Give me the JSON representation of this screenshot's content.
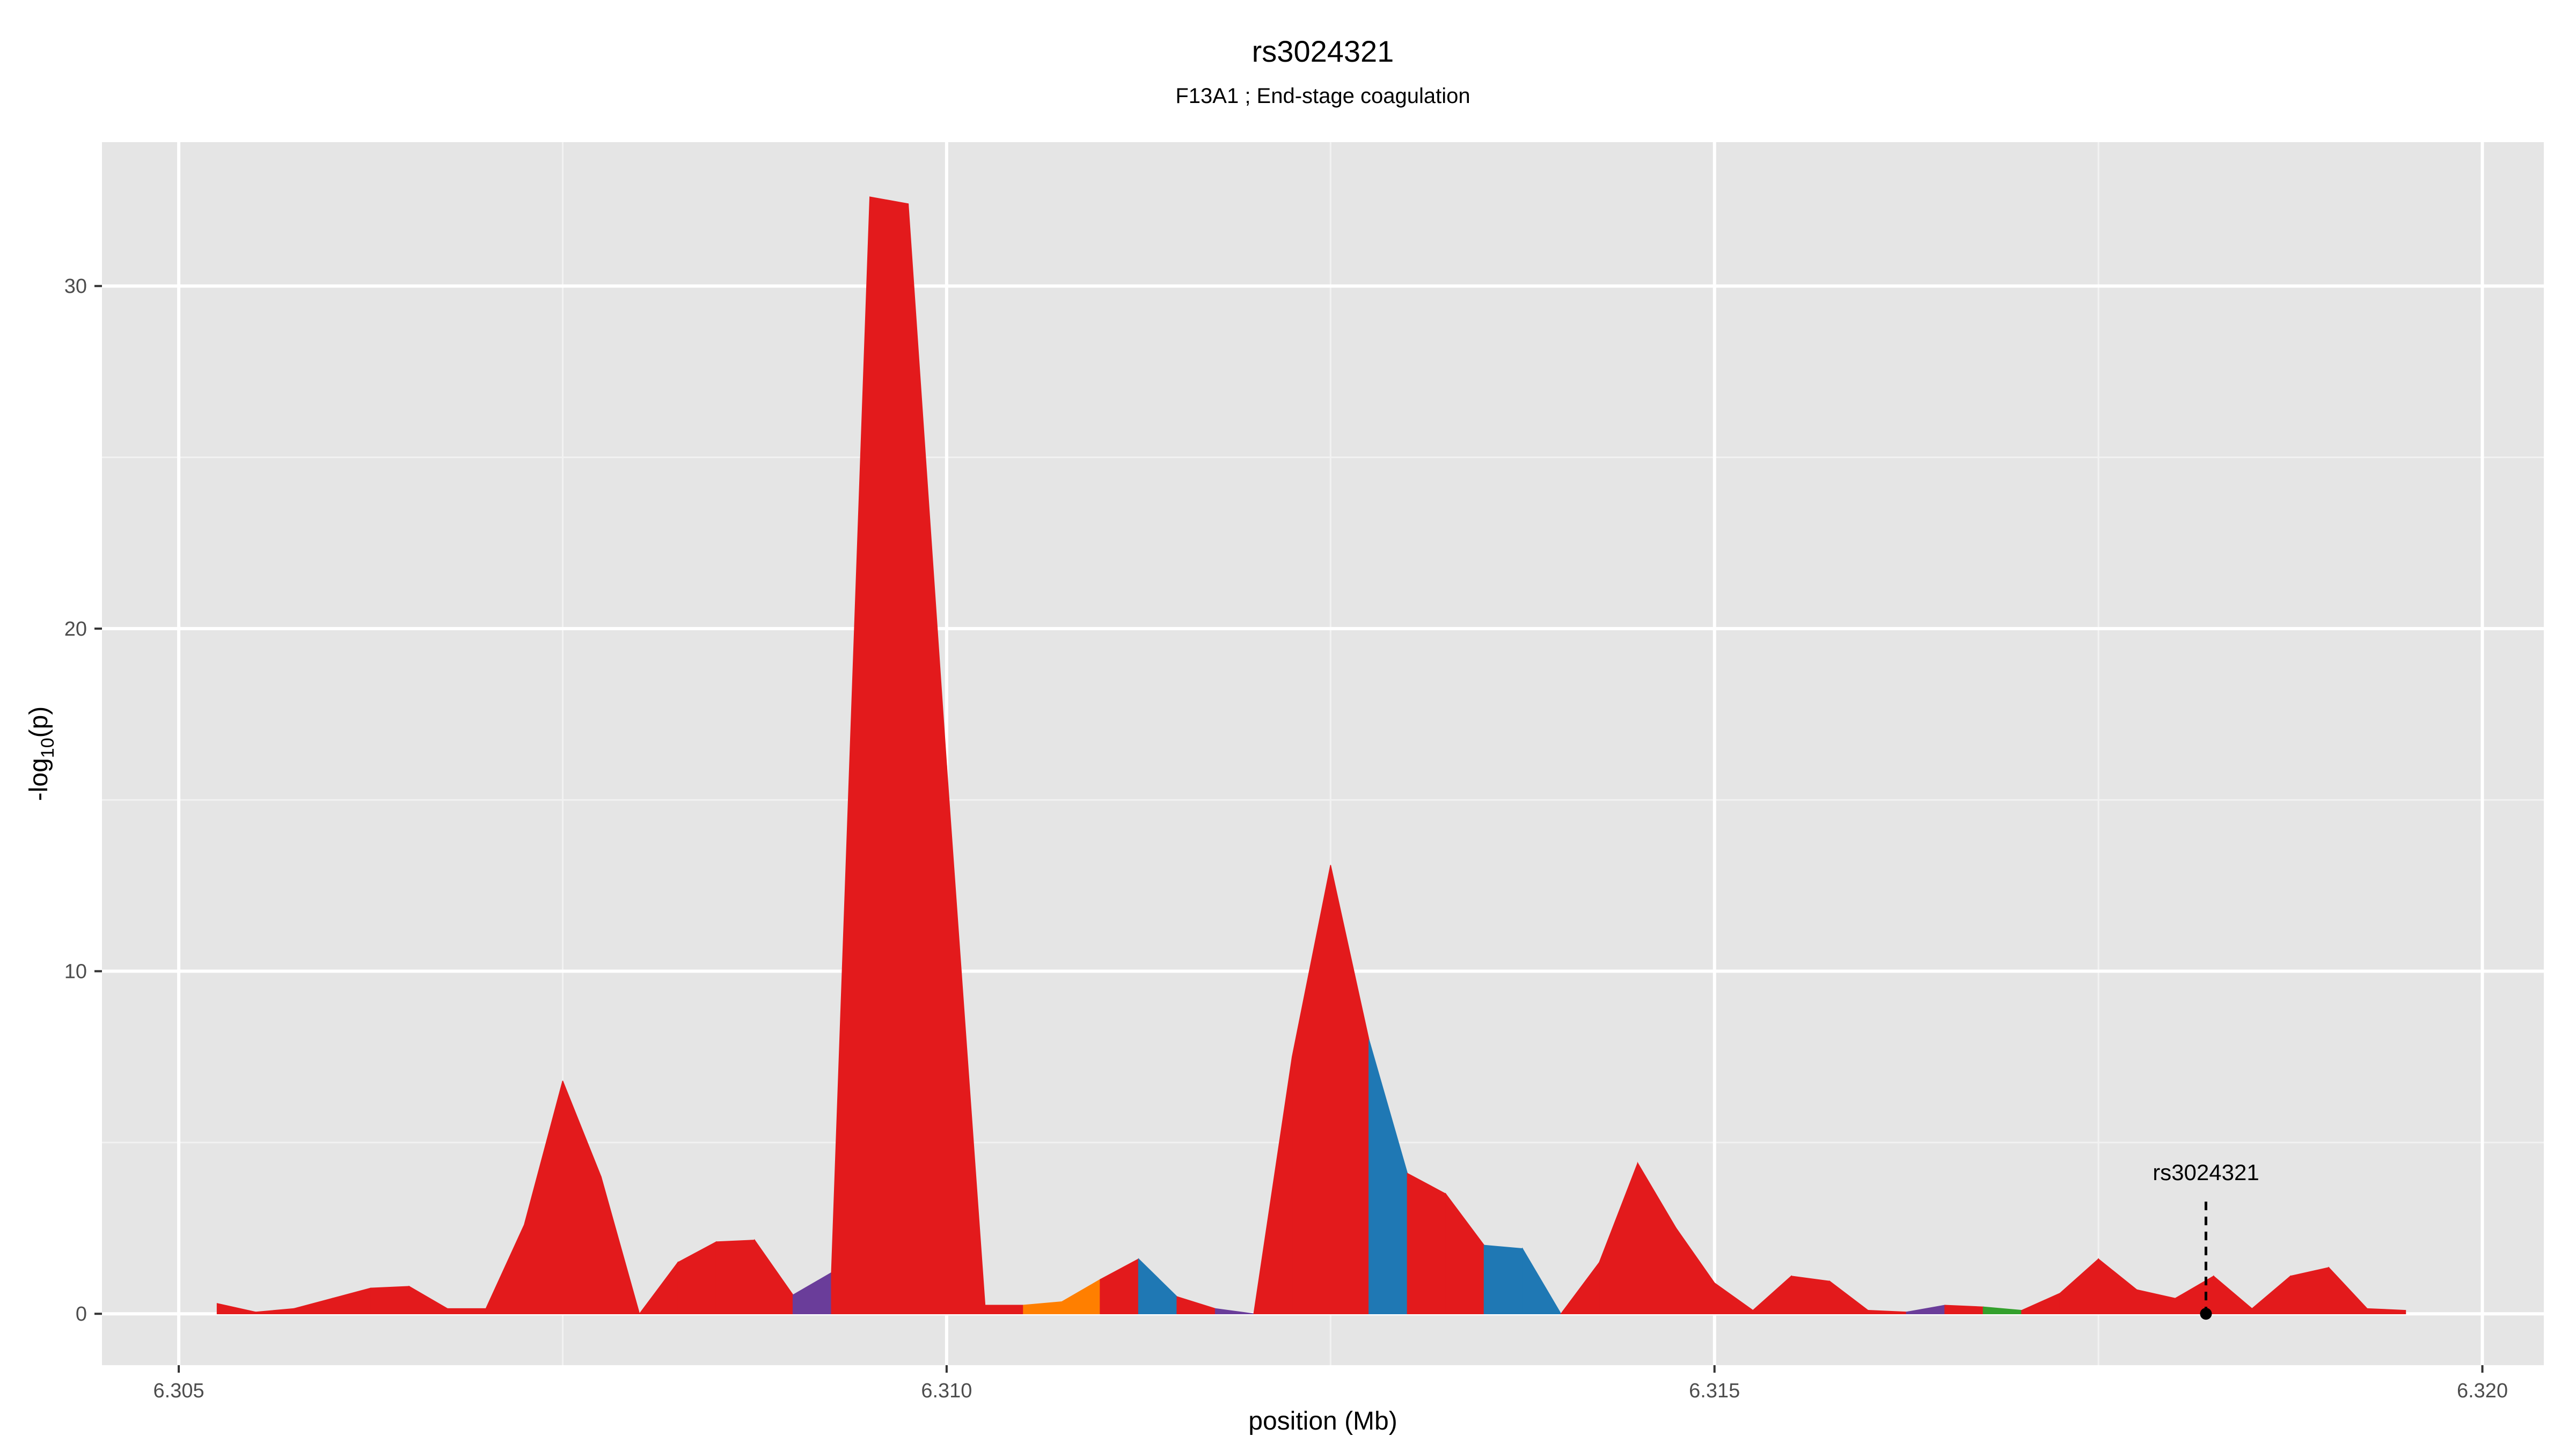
{
  "chart_data": {
    "type": "area",
    "title": "rs3024321",
    "subtitle": "F13A1 ; End-stage coagulation",
    "xlabel": "position (Mb)",
    "ylabel_main": "-log",
    "ylabel_sub": "10",
    "ylabel_tail": "(p)",
    "xlim": [
      6.3045,
      6.3204
    ],
    "ylim": [
      -1.5,
      34.2
    ],
    "x_ticks": [
      6.305,
      6.31,
      6.315,
      6.32
    ],
    "x_tick_labels": [
      "6.305",
      "6.310",
      "6.315",
      "6.320"
    ],
    "y_ticks": [
      0,
      10,
      20,
      30
    ],
    "y_tick_labels": [
      "0",
      "10",
      "20",
      "30"
    ],
    "grid": true,
    "legend": "none",
    "colors": {
      "red": "#e31a1c",
      "blue": "#1f78b4",
      "purple": "#6a3d9a",
      "orange": "#ff7f00",
      "green": "#33a02c",
      "panel": "#e5e5e5",
      "grid_major": "#ffffff",
      "grid_minor": "#f2f2f2"
    },
    "series": [
      {
        "x": [
          6.30525,
          6.3055,
          6.30575,
          6.306,
          6.30625,
          6.3065,
          6.30675,
          6.307,
          6.30725,
          6.3075,
          6.30775,
          6.308,
          6.30825,
          6.3085,
          6.30875,
          6.309,
          6.30925,
          6.3095,
          6.30975,
          6.31,
          6.31025,
          6.3105,
          6.31075,
          6.311,
          6.31125,
          6.3115,
          6.31175,
          6.312,
          6.31225,
          6.3125,
          6.31275,
          6.313,
          6.31325,
          6.3135,
          6.31375,
          6.314,
          6.31425,
          6.3145,
          6.31475,
          6.315,
          6.31525,
          6.3155,
          6.31575,
          6.316,
          6.31625,
          6.3165,
          6.31675,
          6.317,
          6.31725,
          6.3175,
          6.31775,
          6.318,
          6.31825,
          6.3185,
          6.31875,
          6.319,
          6.31925,
          6.3195
        ],
        "y": [
          0.3,
          0.05,
          0.15,
          0.45,
          0.75,
          0.8,
          0.15,
          0.15,
          2.6,
          6.8,
          4.0,
          0.0,
          1.5,
          2.1,
          2.15,
          0.55,
          1.2,
          32.6,
          32.4,
          16.0,
          0.25,
          0.25,
          0.35,
          1.0,
          1.6,
          0.5,
          0.15,
          0.0,
          7.5,
          13.1,
          8.0,
          4.1,
          3.5,
          2.0,
          1.9,
          0.0,
          1.5,
          4.4,
          2.5,
          0.9,
          0.1,
          1.1,
          0.95,
          0.1,
          0.05,
          0.25,
          0.2,
          0.1,
          0.6,
          1.6,
          0.7,
          0.45,
          1.1,
          0.15,
          1.1,
          1.35,
          0.15,
          0.1
        ],
        "colors": [
          "red",
          "red",
          "red",
          "red",
          "red",
          "red",
          "red",
          "red",
          "red",
          "red",
          "red",
          "red",
          "red",
          "red",
          "red",
          "purple",
          "red",
          "red",
          "red",
          "red",
          "red",
          "orange",
          "orange",
          "red",
          "blue",
          "red",
          "purple",
          "red",
          "red",
          "red",
          "blue",
          "red",
          "red",
          "blue",
          "blue",
          "red",
          "red",
          "red",
          "red",
          "red",
          "red",
          "red",
          "red",
          "red",
          "purple",
          "red",
          "green",
          "red",
          "red",
          "red",
          "red",
          "red",
          "red",
          "red",
          "red",
          "red",
          "red",
          "red"
        ]
      }
    ],
    "annotations": [
      {
        "text": "rs3024321",
        "x": 6.3182,
        "y": 0.0,
        "label_y": 3.9
      }
    ]
  }
}
